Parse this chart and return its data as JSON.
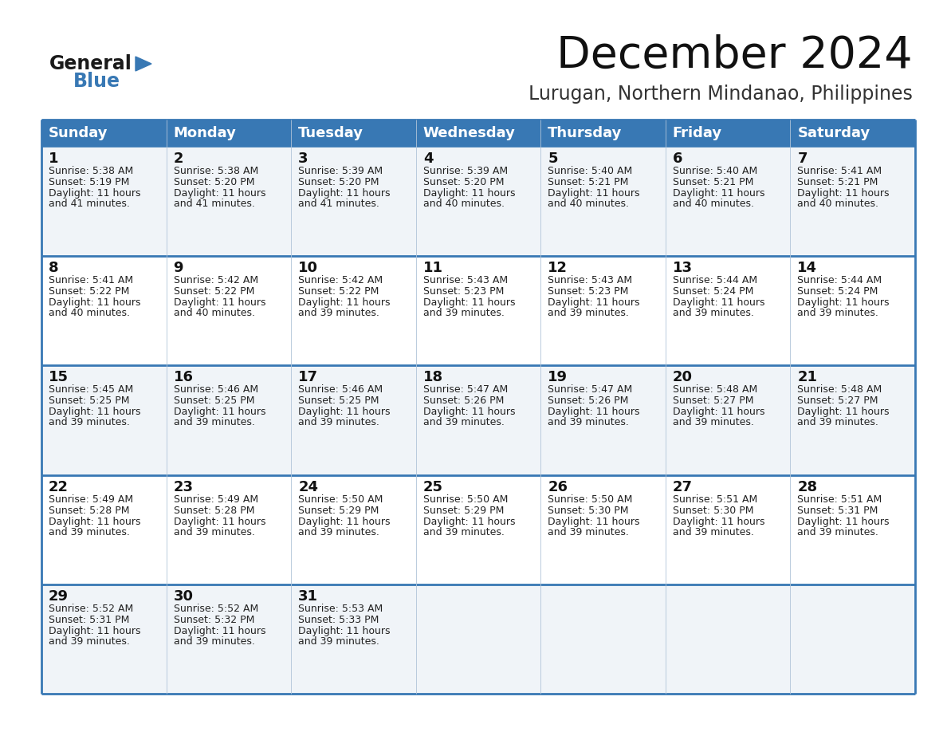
{
  "title": "December 2024",
  "subtitle": "Lurugan, Northern Mindanao, Philippines",
  "header_bg": "#3878b4",
  "header_text": "#ffffff",
  "row_bg_light": "#f0f4f8",
  "row_bg_white": "#ffffff",
  "border_color": "#3878b4",
  "cell_border": "#b0c4d8",
  "days_of_week": [
    "Sunday",
    "Monday",
    "Tuesday",
    "Wednesday",
    "Thursday",
    "Friday",
    "Saturday"
  ],
  "weeks": [
    [
      {
        "day": 1,
        "sunrise": "5:38 AM",
        "sunset": "5:19 PM",
        "daylight": "11 hours and 41 minutes."
      },
      {
        "day": 2,
        "sunrise": "5:38 AM",
        "sunset": "5:20 PM",
        "daylight": "11 hours and 41 minutes."
      },
      {
        "day": 3,
        "sunrise": "5:39 AM",
        "sunset": "5:20 PM",
        "daylight": "11 hours and 41 minutes."
      },
      {
        "day": 4,
        "sunrise": "5:39 AM",
        "sunset": "5:20 PM",
        "daylight": "11 hours and 40 minutes."
      },
      {
        "day": 5,
        "sunrise": "5:40 AM",
        "sunset": "5:21 PM",
        "daylight": "11 hours and 40 minutes."
      },
      {
        "day": 6,
        "sunrise": "5:40 AM",
        "sunset": "5:21 PM",
        "daylight": "11 hours and 40 minutes."
      },
      {
        "day": 7,
        "sunrise": "5:41 AM",
        "sunset": "5:21 PM",
        "daylight": "11 hours and 40 minutes."
      }
    ],
    [
      {
        "day": 8,
        "sunrise": "5:41 AM",
        "sunset": "5:22 PM",
        "daylight": "11 hours and 40 minutes."
      },
      {
        "day": 9,
        "sunrise": "5:42 AM",
        "sunset": "5:22 PM",
        "daylight": "11 hours and 40 minutes."
      },
      {
        "day": 10,
        "sunrise": "5:42 AM",
        "sunset": "5:22 PM",
        "daylight": "11 hours and 39 minutes."
      },
      {
        "day": 11,
        "sunrise": "5:43 AM",
        "sunset": "5:23 PM",
        "daylight": "11 hours and 39 minutes."
      },
      {
        "day": 12,
        "sunrise": "5:43 AM",
        "sunset": "5:23 PM",
        "daylight": "11 hours and 39 minutes."
      },
      {
        "day": 13,
        "sunrise": "5:44 AM",
        "sunset": "5:24 PM",
        "daylight": "11 hours and 39 minutes."
      },
      {
        "day": 14,
        "sunrise": "5:44 AM",
        "sunset": "5:24 PM",
        "daylight": "11 hours and 39 minutes."
      }
    ],
    [
      {
        "day": 15,
        "sunrise": "5:45 AM",
        "sunset": "5:25 PM",
        "daylight": "11 hours and 39 minutes."
      },
      {
        "day": 16,
        "sunrise": "5:46 AM",
        "sunset": "5:25 PM",
        "daylight": "11 hours and 39 minutes."
      },
      {
        "day": 17,
        "sunrise": "5:46 AM",
        "sunset": "5:25 PM",
        "daylight": "11 hours and 39 minutes."
      },
      {
        "day": 18,
        "sunrise": "5:47 AM",
        "sunset": "5:26 PM",
        "daylight": "11 hours and 39 minutes."
      },
      {
        "day": 19,
        "sunrise": "5:47 AM",
        "sunset": "5:26 PM",
        "daylight": "11 hours and 39 minutes."
      },
      {
        "day": 20,
        "sunrise": "5:48 AM",
        "sunset": "5:27 PM",
        "daylight": "11 hours and 39 minutes."
      },
      {
        "day": 21,
        "sunrise": "5:48 AM",
        "sunset": "5:27 PM",
        "daylight": "11 hours and 39 minutes."
      }
    ],
    [
      {
        "day": 22,
        "sunrise": "5:49 AM",
        "sunset": "5:28 PM",
        "daylight": "11 hours and 39 minutes."
      },
      {
        "day": 23,
        "sunrise": "5:49 AM",
        "sunset": "5:28 PM",
        "daylight": "11 hours and 39 minutes."
      },
      {
        "day": 24,
        "sunrise": "5:50 AM",
        "sunset": "5:29 PM",
        "daylight": "11 hours and 39 minutes."
      },
      {
        "day": 25,
        "sunrise": "5:50 AM",
        "sunset": "5:29 PM",
        "daylight": "11 hours and 39 minutes."
      },
      {
        "day": 26,
        "sunrise": "5:50 AM",
        "sunset": "5:30 PM",
        "daylight": "11 hours and 39 minutes."
      },
      {
        "day": 27,
        "sunrise": "5:51 AM",
        "sunset": "5:30 PM",
        "daylight": "11 hours and 39 minutes."
      },
      {
        "day": 28,
        "sunrise": "5:51 AM",
        "sunset": "5:31 PM",
        "daylight": "11 hours and 39 minutes."
      }
    ],
    [
      {
        "day": 29,
        "sunrise": "5:52 AM",
        "sunset": "5:31 PM",
        "daylight": "11 hours and 39 minutes."
      },
      {
        "day": 30,
        "sunrise": "5:52 AM",
        "sunset": "5:32 PM",
        "daylight": "11 hours and 39 minutes."
      },
      {
        "day": 31,
        "sunrise": "5:53 AM",
        "sunset": "5:33 PM",
        "daylight": "11 hours and 39 minutes."
      },
      null,
      null,
      null,
      null
    ]
  ],
  "logo_general_color": "#1a1a1a",
  "logo_blue_color": "#3878b4",
  "logo_triangle_color": "#3878b4",
  "title_fontsize": 40,
  "subtitle_fontsize": 17,
  "header_fontsize": 13,
  "day_num_fontsize": 13,
  "cell_text_fontsize": 9
}
